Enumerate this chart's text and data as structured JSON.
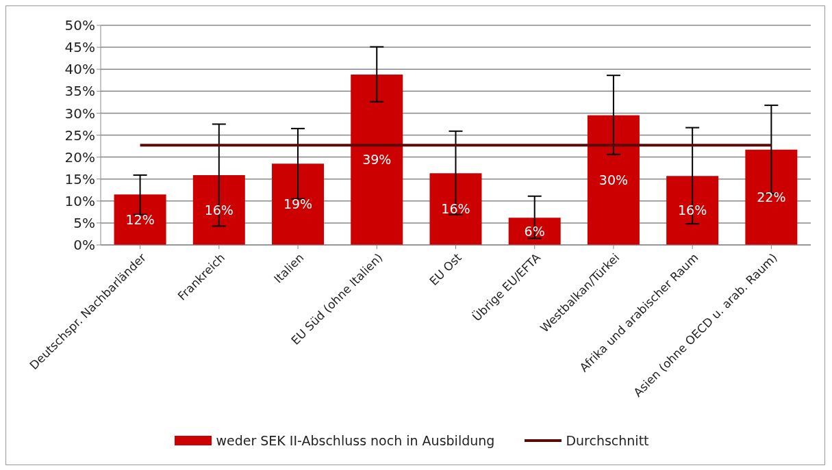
{
  "chart_data": {
    "type": "bar",
    "categories": [
      "Deutschspr. Nachbarländer",
      "Frankreich",
      "Italien",
      "EU Süd (ohne Italien)",
      "EU Ost",
      "Übrige EU/EFTA",
      "Westbalkan/Türkei",
      "Afrika und arabischer Raum",
      "Asien (ohne OECD u. arab. Raum)"
    ],
    "series": [
      {
        "name": "weder SEK II-Abschluss noch in Ausbildung",
        "color": "#cc0000",
        "values": [
          11.5,
          15.9,
          18.5,
          38.8,
          16.3,
          6.2,
          29.5,
          15.7,
          21.7
        ],
        "errors": [
          [
            6.9,
            15.9
          ],
          [
            4.3,
            27.5
          ],
          [
            10.5,
            26.5
          ],
          [
            32.6,
            45.1
          ],
          [
            6.9,
            25.9
          ],
          [
            1.5,
            11.1
          ],
          [
            20.6,
            38.6
          ],
          [
            4.8,
            26.7
          ],
          [
            11.7,
            31.8
          ]
        ],
        "value_labels": [
          "12%",
          "16%",
          "19%",
          "39%",
          "16%",
          "6%",
          "30%",
          "16%",
          "22%"
        ]
      },
      {
        "name": "Durchschnitt",
        "type": "line",
        "color": "#5b0a0a",
        "values": [
          22.7,
          22.7,
          22.7,
          22.7,
          22.7,
          22.7,
          22.7,
          22.7,
          22.7
        ]
      }
    ],
    "ylim": [
      0,
      50
    ],
    "yticks": [
      {
        "value": 0,
        "label": "0%"
      },
      {
        "value": 5,
        "label": "5%"
      },
      {
        "value": 10,
        "label": "10%"
      },
      {
        "value": 15,
        "label": "15%"
      },
      {
        "value": 20,
        "label": "20%"
      },
      {
        "value": 25,
        "label": "25%"
      },
      {
        "value": 30,
        "label": "30%"
      },
      {
        "value": 35,
        "label": "35%"
      },
      {
        "value": 40,
        "label": "40%"
      },
      {
        "value": 45,
        "label": "45%"
      },
      {
        "value": 50,
        "label": "50%"
      }
    ],
    "grid": "y",
    "legend": "bottom"
  }
}
